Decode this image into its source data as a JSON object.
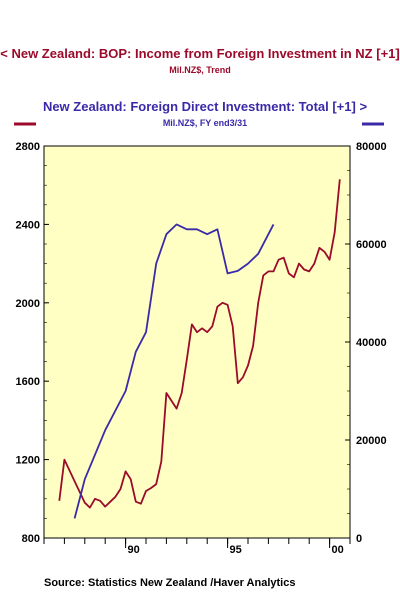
{
  "chart_data": {
    "type": "line",
    "series": [
      {
        "name": "< New Zealand: BOP: Income from Foreign Investment in NZ [+1]",
        "units": "Mil.NZ$, Trend",
        "axis": "left",
        "color": "#9b0a2a",
        "points": [
          [
            1986.75,
            990
          ],
          [
            1987.0,
            1200
          ],
          [
            1987.5,
            1090
          ],
          [
            1988.0,
            980
          ],
          [
            1988.25,
            955
          ],
          [
            1988.5,
            1000
          ],
          [
            1988.75,
            990
          ],
          [
            1989.0,
            960
          ],
          [
            1989.25,
            985
          ],
          [
            1989.5,
            1010
          ],
          [
            1989.75,
            1050
          ],
          [
            1990.0,
            1140
          ],
          [
            1990.25,
            1100
          ],
          [
            1990.5,
            985
          ],
          [
            1990.75,
            975
          ],
          [
            1991.0,
            1040
          ],
          [
            1991.25,
            1055
          ],
          [
            1991.5,
            1075
          ],
          [
            1991.75,
            1190
          ],
          [
            1992.0,
            1540
          ],
          [
            1992.5,
            1460
          ],
          [
            1992.75,
            1540
          ],
          [
            1993.0,
            1710
          ],
          [
            1993.25,
            1890
          ],
          [
            1993.5,
            1850
          ],
          [
            1993.75,
            1870
          ],
          [
            1994.0,
            1850
          ],
          [
            1994.25,
            1880
          ],
          [
            1994.5,
            1980
          ],
          [
            1994.75,
            2000
          ],
          [
            1995.0,
            1990
          ],
          [
            1995.25,
            1880
          ],
          [
            1995.5,
            1590
          ],
          [
            1995.75,
            1620
          ],
          [
            1996.0,
            1680
          ],
          [
            1996.25,
            1780
          ],
          [
            1996.5,
            2000
          ],
          [
            1996.75,
            2140
          ],
          [
            1997.0,
            2160
          ],
          [
            1997.25,
            2160
          ],
          [
            1997.5,
            2220
          ],
          [
            1997.75,
            2230
          ],
          [
            1998.0,
            2150
          ],
          [
            1998.25,
            2130
          ],
          [
            1998.5,
            2200
          ],
          [
            1998.75,
            2170
          ],
          [
            1999.0,
            2160
          ],
          [
            1999.25,
            2200
          ],
          [
            1999.5,
            2280
          ],
          [
            1999.75,
            2260
          ],
          [
            2000.0,
            2220
          ],
          [
            2000.25,
            2360
          ],
          [
            2000.5,
            2630
          ]
        ]
      },
      {
        "name": "New Zealand: Foreign Direct Investment: Total [+1] >",
        "units": "Mil.NZ$, FY end 3/31",
        "axis": "right",
        "color": "#3a2aa8",
        "points": [
          [
            1987.5,
            4000
          ],
          [
            1988.0,
            12000
          ],
          [
            1989.0,
            22000
          ],
          [
            1990.0,
            30000
          ],
          [
            1990.5,
            38000
          ],
          [
            1991.0,
            42000
          ],
          [
            1991.5,
            56000
          ],
          [
            1992.0,
            62000
          ],
          [
            1992.5,
            64000
          ],
          [
            1993.0,
            63000
          ],
          [
            1993.5,
            63000
          ],
          [
            1994.0,
            62000
          ],
          [
            1994.5,
            63000
          ],
          [
            1995.0,
            54000
          ],
          [
            1995.5,
            54500
          ],
          [
            1996.0,
            56000
          ],
          [
            1996.5,
            58000
          ],
          [
            1997.0,
            62000
          ],
          [
            1997.25,
            64000
          ]
        ]
      }
    ],
    "title_left": "< New Zealand: BOP: Income from Foreign Investment in NZ [+1]",
    "subtitle_left": "Mil.NZ$, Trend",
    "title_right": "New Zealand: Foreign Direct Investment: Total [+1] >",
    "subtitle_right": "Mil.NZ$, FY end3/31",
    "source": "Source:  Statistics New Zealand /Haver Analytics",
    "x_range": [
      1986.0,
      2001.0
    ],
    "x_ticks": [
      {
        "value": 1990.0,
        "label": "90"
      },
      {
        "value": 1995.0,
        "label": "95"
      },
      {
        "value": 2000.0,
        "label": "00"
      }
    ],
    "y_left": {
      "range": [
        800,
        2800
      ],
      "ticks": [
        800,
        1200,
        1600,
        2000,
        2400,
        2800
      ],
      "labels": [
        "800",
        "1200",
        "1600",
        "2000",
        "2400",
        "2800"
      ]
    },
    "y_right": {
      "range": [
        0,
        80000
      ],
      "ticks": [
        0,
        20000,
        40000,
        60000,
        80000
      ],
      "labels": [
        "0",
        "20000",
        "40000",
        "60000",
        "80000"
      ]
    },
    "plot_background": "#ffffc4",
    "grid": false
  }
}
